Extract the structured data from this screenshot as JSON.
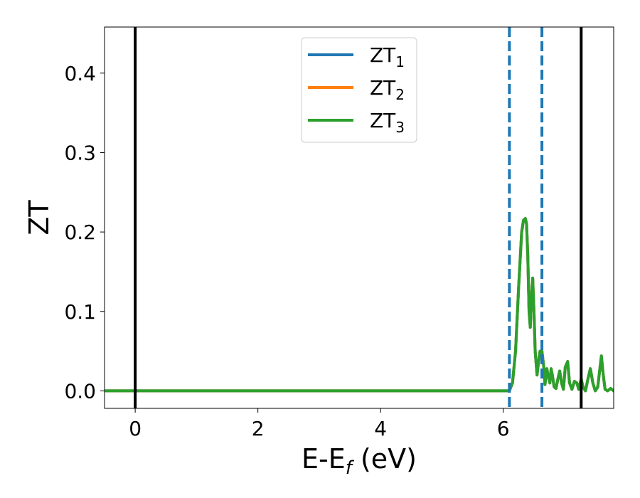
{
  "chart_data": {
    "type": "line",
    "xlabel": {
      "base": "E-E",
      "sub": "f",
      "unit": " (eV)"
    },
    "ylabel": "ZT",
    "xlim": [
      -0.5,
      7.8
    ],
    "ylim": [
      -0.022,
      0.458
    ],
    "xticks": [
      0,
      2,
      4,
      6
    ],
    "xtick_labels": [
      "0",
      "2",
      "4",
      "6"
    ],
    "yticks": [
      0.0,
      0.1,
      0.2,
      0.3,
      0.4
    ],
    "ytick_labels": [
      "0.0",
      "0.1",
      "0.2",
      "0.3",
      "0.4"
    ],
    "grid": false,
    "legend_position": "top-center",
    "vlines": [
      {
        "x": 0.0,
        "style": "solid",
        "color": "#000000"
      },
      {
        "x": 6.1,
        "style": "dashed",
        "color": "#1f77b4"
      },
      {
        "x": 6.63,
        "style": "dashed",
        "color": "#1f77b4"
      },
      {
        "x": 7.27,
        "style": "solid",
        "color": "#000000"
      }
    ],
    "series": [
      {
        "name": {
          "base": "ZT",
          "sub": "1"
        },
        "color": "#1f77b4",
        "x": [
          -0.5,
          6.0,
          6.1,
          6.15,
          6.2,
          6.25,
          6.3,
          6.33,
          6.36,
          6.38,
          6.4,
          6.42,
          6.44,
          6.46,
          6.48,
          6.5,
          6.52,
          6.55,
          6.58,
          6.6,
          6.63,
          6.66,
          6.68,
          6.71,
          6.73,
          6.76,
          6.78,
          6.8,
          6.83,
          6.86,
          6.89,
          6.92,
          6.95,
          6.98,
          7.01,
          7.05,
          7.08,
          7.12,
          7.16,
          7.2,
          7.23,
          7.27,
          7.3,
          7.34,
          7.38,
          7.42,
          7.46,
          7.5,
          7.54,
          7.57,
          7.6,
          7.63,
          7.66,
          7.7,
          7.75,
          7.8
        ],
        "y": [
          0.0,
          0.0,
          0.0,
          0.01,
          0.05,
          0.13,
          0.2,
          0.215,
          0.217,
          0.21,
          0.17,
          0.1,
          0.08,
          0.12,
          0.142,
          0.1,
          0.05,
          0.02,
          0.04,
          0.05,
          0.05,
          0.03,
          0.008,
          0.028,
          0.02,
          0.01,
          0.028,
          0.02,
          0.005,
          0.003,
          0.015,
          0.025,
          0.01,
          0.002,
          0.03,
          0.037,
          0.01,
          0.002,
          0.012,
          0.01,
          0.002,
          0.015,
          0.005,
          0.0,
          0.015,
          0.028,
          0.01,
          0.0,
          0.005,
          0.025,
          0.044,
          0.02,
          0.002,
          0.0,
          0.003,
          0.0
        ]
      },
      {
        "name": {
          "base": "ZT",
          "sub": "2"
        },
        "color": "#ff7f0e",
        "x": [
          -0.5,
          6.0,
          6.1,
          6.15,
          6.2,
          6.25,
          6.3,
          6.33,
          6.36,
          6.38,
          6.4,
          6.42,
          6.44,
          6.46,
          6.48,
          6.5,
          6.52,
          6.55,
          6.58,
          6.6,
          6.63,
          6.66,
          6.68,
          6.71,
          6.73,
          6.76,
          6.78,
          6.8,
          6.83,
          6.86,
          6.89,
          6.92,
          6.95,
          6.98,
          7.01,
          7.05,
          7.08,
          7.12,
          7.16,
          7.2,
          7.23,
          7.27,
          7.3,
          7.34,
          7.38,
          7.42,
          7.46,
          7.5,
          7.54,
          7.57,
          7.6,
          7.63,
          7.66,
          7.7,
          7.75,
          7.8
        ],
        "y": [
          0.0,
          0.0,
          0.0,
          0.01,
          0.05,
          0.13,
          0.2,
          0.215,
          0.217,
          0.21,
          0.17,
          0.1,
          0.08,
          0.12,
          0.142,
          0.1,
          0.05,
          0.02,
          0.04,
          0.05,
          0.05,
          0.03,
          0.008,
          0.028,
          0.02,
          0.01,
          0.028,
          0.02,
          0.005,
          0.003,
          0.015,
          0.025,
          0.01,
          0.002,
          0.03,
          0.037,
          0.01,
          0.002,
          0.012,
          0.01,
          0.002,
          0.015,
          0.005,
          0.0,
          0.015,
          0.028,
          0.01,
          0.0,
          0.005,
          0.025,
          0.044,
          0.02,
          0.002,
          0.0,
          0.003,
          0.0
        ]
      },
      {
        "name": {
          "base": "ZT",
          "sub": "3"
        },
        "color": "#2ca02c",
        "x": [
          -0.5,
          6.0,
          6.1,
          6.15,
          6.2,
          6.25,
          6.3,
          6.33,
          6.36,
          6.38,
          6.4,
          6.42,
          6.44,
          6.46,
          6.48,
          6.5,
          6.52,
          6.55,
          6.58,
          6.6,
          6.63,
          6.66,
          6.68,
          6.71,
          6.73,
          6.76,
          6.78,
          6.8,
          6.83,
          6.86,
          6.89,
          6.92,
          6.95,
          6.98,
          7.01,
          7.05,
          7.08,
          7.12,
          7.16,
          7.2,
          7.23,
          7.27,
          7.3,
          7.34,
          7.38,
          7.42,
          7.46,
          7.5,
          7.54,
          7.57,
          7.6,
          7.63,
          7.66,
          7.7,
          7.75,
          7.8
        ],
        "y": [
          0.0,
          0.0,
          0.0,
          0.01,
          0.05,
          0.13,
          0.2,
          0.215,
          0.217,
          0.21,
          0.17,
          0.1,
          0.08,
          0.12,
          0.142,
          0.1,
          0.05,
          0.02,
          0.04,
          0.05,
          0.05,
          0.03,
          0.008,
          0.028,
          0.02,
          0.01,
          0.028,
          0.02,
          0.005,
          0.003,
          0.015,
          0.025,
          0.01,
          0.002,
          0.03,
          0.037,
          0.01,
          0.002,
          0.012,
          0.01,
          0.002,
          0.015,
          0.005,
          0.0,
          0.015,
          0.028,
          0.01,
          0.0,
          0.005,
          0.025,
          0.044,
          0.02,
          0.002,
          0.0,
          0.003,
          0.0
        ]
      }
    ]
  }
}
